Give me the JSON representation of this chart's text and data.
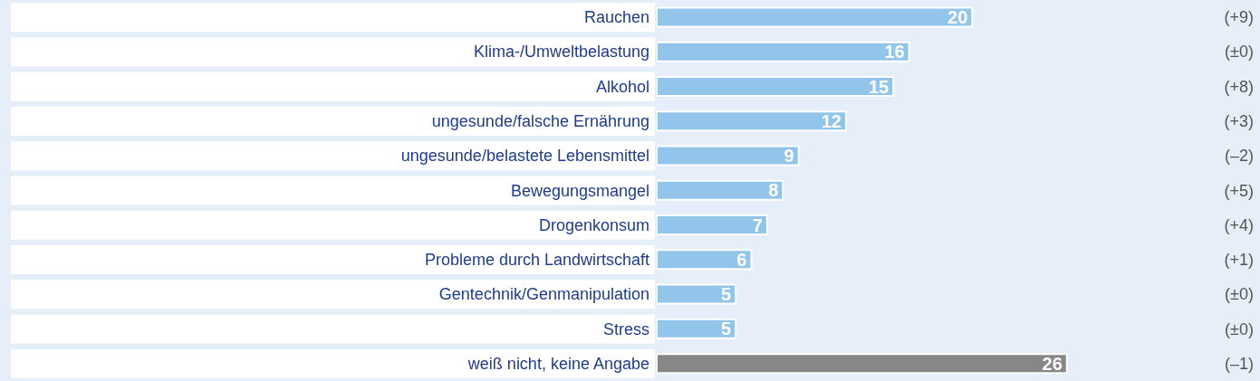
{
  "chart_data": {
    "type": "bar",
    "orientation": "horizontal",
    "data_labels": true,
    "categories": [
      "Rauchen",
      "Klima-/Umweltbelastung",
      "Alkohol",
      "ungesunde/falsche Ernährung",
      "ungesunde/belastete Lebensmittel",
      "Bewegungsmangel",
      "Drogenkonsum",
      "Probleme durch Landwirtschaft",
      "Gentechnik/Genmanipulation",
      "Stress",
      "weiß nicht, keine Angabe"
    ],
    "values": [
      20,
      16,
      15,
      12,
      9,
      8,
      7,
      6,
      5,
      5,
      26
    ],
    "colors": [
      "#93c5ea",
      "#93c5ea",
      "#93c5ea",
      "#93c5ea",
      "#93c5ea",
      "#93c5ea",
      "#93c5ea",
      "#93c5ea",
      "#93c5ea",
      "#93c5ea",
      "#878787"
    ],
    "annotations": [
      "(+9)",
      "(±0)",
      "(+8)",
      "(+3)",
      "(–2)",
      "(+5)",
      "(+4)",
      "(+1)",
      "(±0)",
      "(±0)",
      "(–1)"
    ]
  }
}
